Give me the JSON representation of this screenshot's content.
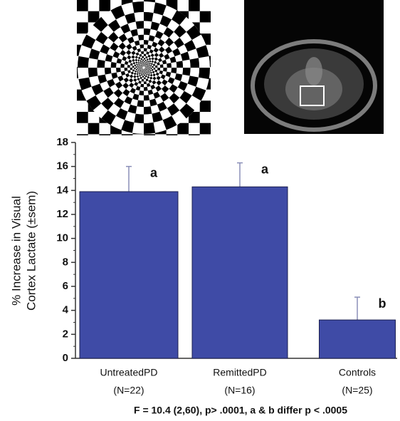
{
  "chart_data": {
    "type": "bar",
    "ylabel": [
      "% Increase in Visual",
      "Cortex Lactate (±sem)"
    ],
    "categories": [
      "UntreatedPD",
      "RemittedPD",
      "Controls"
    ],
    "category_notes": [
      "(N=22)",
      "(N=16)",
      "(N=25)"
    ],
    "values": [
      13.9,
      14.3,
      3.2
    ],
    "errors": [
      2.1,
      2.0,
      1.9
    ],
    "annotations": [
      "a",
      "a",
      "b"
    ],
    "color": "#3f4ba6",
    "ylim": [
      0,
      18
    ],
    "yticks": [
      0,
      2,
      4,
      6,
      8,
      10,
      12,
      14,
      16,
      18
    ],
    "footnote": "F = 10.4 (2,60), p> .0001, a & b differ  p < .0005"
  }
}
